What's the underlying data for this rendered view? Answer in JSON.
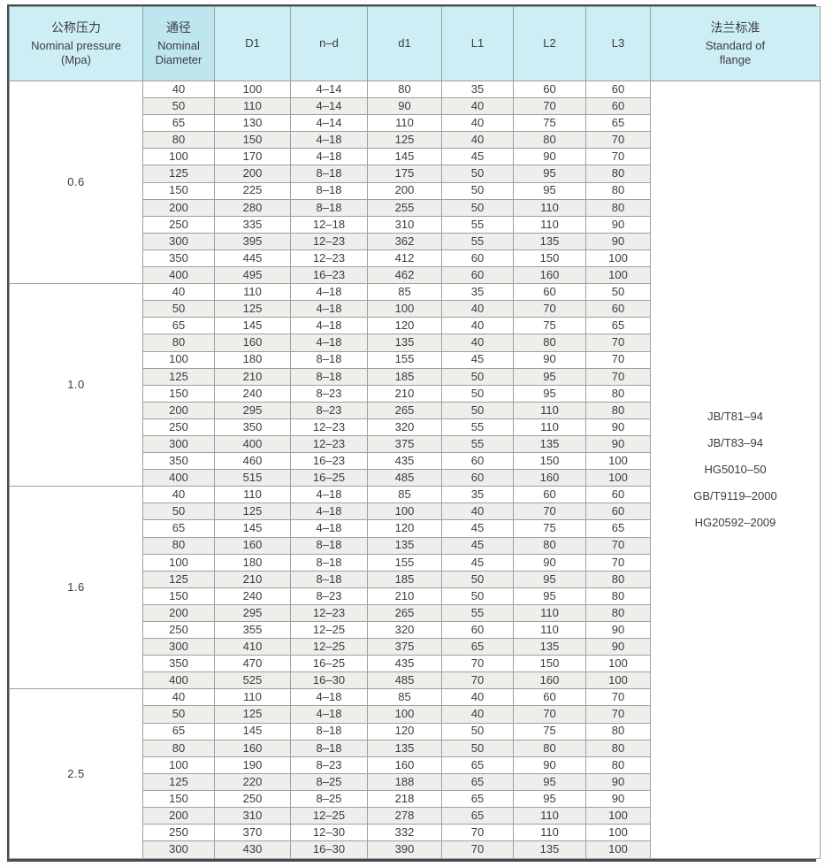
{
  "colors": {
    "header_bg": "#cdeef5",
    "header_bg_diameter": "#bfe5ef",
    "stripe_bg": "#eeeeeb",
    "grid_line": "#9aa1a2",
    "group_divider": "#5f6769",
    "outer_border": "#454d4f",
    "header_text": "#31464f",
    "data_text": "#3a3d3e"
  },
  "table": {
    "header": {
      "pressure_zh": "公称压力",
      "pressure_en": "Nominal pressure",
      "pressure_unit": "(Mpa)",
      "diameter_zh": "通径",
      "diameter_en1": "Nominal",
      "diameter_en2": "Diameter",
      "d1": "D1",
      "nd": "n–d",
      "d1_small": "d1",
      "l1": "L1",
      "l2": "L2",
      "l3": "L3",
      "standard_zh": "法兰标准",
      "standard_en1": "Standard of",
      "standard_en2": "flange"
    },
    "column_keys": [
      "diameter",
      "D1",
      "n-d",
      "d1",
      "L1",
      "L2",
      "L3"
    ],
    "groups": [
      {
        "pressure": "0.6",
        "rows": [
          [
            "40",
            "100",
            "4–14",
            "80",
            "35",
            "60",
            "60"
          ],
          [
            "50",
            "110",
            "4–14",
            "90",
            "40",
            "70",
            "60"
          ],
          [
            "65",
            "130",
            "4–14",
            "110",
            "40",
            "75",
            "65"
          ],
          [
            "80",
            "150",
            "4–18",
            "125",
            "40",
            "80",
            "70"
          ],
          [
            "100",
            "170",
            "4–18",
            "145",
            "45",
            "90",
            "70"
          ],
          [
            "125",
            "200",
            "8–18",
            "175",
            "50",
            "95",
            "80"
          ],
          [
            "150",
            "225",
            "8–18",
            "200",
            "50",
            "95",
            "80"
          ],
          [
            "200",
            "280",
            "8–18",
            "255",
            "50",
            "110",
            "80"
          ],
          [
            "250",
            "335",
            "12–18",
            "310",
            "55",
            "110",
            "90"
          ],
          [
            "300",
            "395",
            "12–23",
            "362",
            "55",
            "135",
            "90"
          ],
          [
            "350",
            "445",
            "12–23",
            "412",
            "60",
            "150",
            "100"
          ],
          [
            "400",
            "495",
            "16–23",
            "462",
            "60",
            "160",
            "100"
          ]
        ]
      },
      {
        "pressure": "1.0",
        "rows": [
          [
            "40",
            "110",
            "4–18",
            "85",
            "35",
            "60",
            "50"
          ],
          [
            "50",
            "125",
            "4–18",
            "100",
            "40",
            "70",
            "60"
          ],
          [
            "65",
            "145",
            "4–18",
            "120",
            "40",
            "75",
            "65"
          ],
          [
            "80",
            "160",
            "4–18",
            "135",
            "40",
            "80",
            "70"
          ],
          [
            "100",
            "180",
            "8–18",
            "155",
            "45",
            "90",
            "70"
          ],
          [
            "125",
            "210",
            "8–18",
            "185",
            "50",
            "95",
            "70"
          ],
          [
            "150",
            "240",
            "8–23",
            "210",
            "50",
            "95",
            "80"
          ],
          [
            "200",
            "295",
            "8–23",
            "265",
            "50",
            "110",
            "80"
          ],
          [
            "250",
            "350",
            "12–23",
            "320",
            "55",
            "110",
            "90"
          ],
          [
            "300",
            "400",
            "12–23",
            "375",
            "55",
            "135",
            "90"
          ],
          [
            "350",
            "460",
            "16–23",
            "435",
            "60",
            "150",
            "100"
          ],
          [
            "400",
            "515",
            "16–25",
            "485",
            "60",
            "160",
            "100"
          ]
        ]
      },
      {
        "pressure": "1.6",
        "rows": [
          [
            "40",
            "110",
            "4–18",
            "85",
            "35",
            "60",
            "60"
          ],
          [
            "50",
            "125",
            "4–18",
            "100",
            "40",
            "70",
            "60"
          ],
          [
            "65",
            "145",
            "4–18",
            "120",
            "45",
            "75",
            "65"
          ],
          [
            "80",
            "160",
            "8–18",
            "135",
            "45",
            "80",
            "70"
          ],
          [
            "100",
            "180",
            "8–18",
            "155",
            "45",
            "90",
            "70"
          ],
          [
            "125",
            "210",
            "8–18",
            "185",
            "50",
            "95",
            "80"
          ],
          [
            "150",
            "240",
            "8–23",
            "210",
            "50",
            "95",
            "80"
          ],
          [
            "200",
            "295",
            "12–23",
            "265",
            "55",
            "110",
            "80"
          ],
          [
            "250",
            "355",
            "12–25",
            "320",
            "60",
            "110",
            "90"
          ],
          [
            "300",
            "410",
            "12–25",
            "375",
            "65",
            "135",
            "90"
          ],
          [
            "350",
            "470",
            "16–25",
            "435",
            "70",
            "150",
            "100"
          ],
          [
            "400",
            "525",
            "16–30",
            "485",
            "70",
            "160",
            "100"
          ]
        ]
      },
      {
        "pressure": "2.5",
        "rows": [
          [
            "40",
            "110",
            "4–18",
            "85",
            "40",
            "60",
            "70"
          ],
          [
            "50",
            "125",
            "4–18",
            "100",
            "40",
            "70",
            "70"
          ],
          [
            "65",
            "145",
            "8–18",
            "120",
            "50",
            "75",
            "80"
          ],
          [
            "80",
            "160",
            "8–18",
            "135",
            "50",
            "80",
            "80"
          ],
          [
            "100",
            "190",
            "8–23",
            "160",
            "65",
            "90",
            "80"
          ],
          [
            "125",
            "220",
            "8–25",
            "188",
            "65",
            "95",
            "90"
          ],
          [
            "150",
            "250",
            "8–25",
            "218",
            "65",
            "95",
            "90"
          ],
          [
            "200",
            "310",
            "12–25",
            "278",
            "65",
            "110",
            "100"
          ],
          [
            "250",
            "370",
            "12–30",
            "332",
            "70",
            "110",
            "100"
          ],
          [
            "300",
            "430",
            "16–30",
            "390",
            "70",
            "135",
            "100"
          ]
        ]
      }
    ],
    "standards": [
      "JB/T81–94",
      "JB/T83–94",
      "HG5010–50",
      "GB/T9119–2000",
      "HG20592–2009"
    ]
  }
}
